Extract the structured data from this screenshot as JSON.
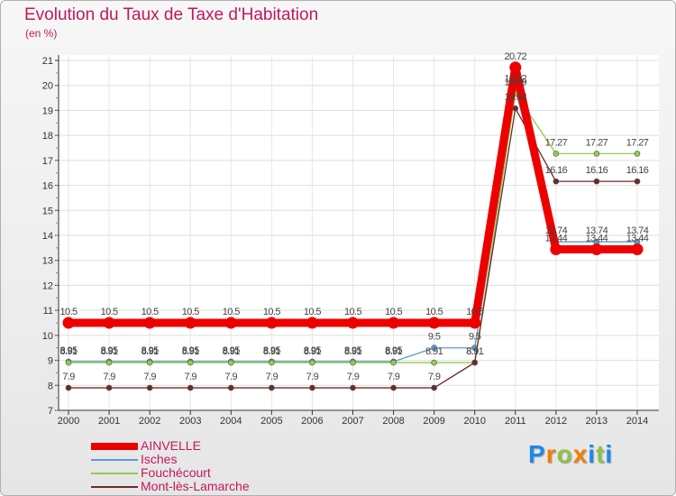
{
  "title": "Evolution du Taux de Taxe d'Habitation",
  "unit_label": "(en %)",
  "brand": {
    "letters": [
      "P",
      "r",
      "o",
      "x",
      "i",
      "t",
      "i"
    ],
    "colors": [
      "#1e88e5",
      "#f57c00",
      "#8bc34a",
      "#f57c00",
      "#1e88e5",
      "#8bc34a",
      "#1e88e5"
    ]
  },
  "chart_data": {
    "type": "line",
    "title": "Evolution du Taux de Taxe d'Habitation",
    "ylabel": "(en %)",
    "xlabel": "",
    "x": [
      "2000",
      "2001",
      "2002",
      "2003",
      "2004",
      "2005",
      "2006",
      "2007",
      "2008",
      "2009",
      "2010",
      "2011",
      "2012",
      "2013",
      "2014"
    ],
    "ylim": [
      7,
      21
    ],
    "yticks": [
      7,
      8,
      9,
      10,
      11,
      12,
      13,
      14,
      15,
      16,
      17,
      18,
      19,
      20,
      21
    ],
    "grid": true,
    "legend_position": "bottom-left",
    "series": [
      {
        "name": "Isches",
        "color": "#5b9bd5",
        "values": [
          8.95,
          8.95,
          8.95,
          8.95,
          8.95,
          8.95,
          8.95,
          8.95,
          8.95,
          9.5,
          9.5,
          19.82,
          13.74,
          13.74,
          13.74
        ],
        "labels": [
          "8.95",
          "8.95",
          "8.95",
          "8.95",
          "8.95",
          "8.95",
          "8.95",
          "8.95",
          "8.95",
          "9.5",
          "9.5",
          "19.82",
          "13.74",
          "13.74",
          "13.74"
        ]
      },
      {
        "name": "Fouchécourt",
        "color": "#8fce4a",
        "values": [
          8.91,
          8.91,
          8.91,
          8.91,
          8.91,
          8.91,
          8.91,
          8.91,
          8.91,
          8.91,
          8.91,
          19.69,
          17.27,
          17.27,
          17.27
        ],
        "labels": [
          "8.91",
          "8.91",
          "8.91",
          "8.91",
          "8.91",
          "8.91",
          "8.91",
          "8.91",
          "8.91",
          "8.91",
          "8.91",
          "19.69",
          "17.27",
          "17.27",
          "17.27"
        ]
      },
      {
        "name": "Mont-lès-Lamarche",
        "color": "#6b2a2a",
        "values": [
          7.9,
          7.9,
          7.9,
          7.9,
          7.9,
          7.9,
          7.9,
          7.9,
          7.9,
          7.9,
          8.91,
          19.08,
          16.16,
          16.16,
          16.16
        ],
        "labels": [
          "7.9",
          "7.9",
          "7.9",
          "7.9",
          "7.9",
          "7.9",
          "7.9",
          "7.9",
          "7.9",
          "7.9",
          "8.91",
          "19.08",
          "16.16",
          "16.16",
          "16.16"
        ]
      },
      {
        "name": "AINVELLE",
        "color": "#ee0000",
        "values": [
          10.5,
          10.5,
          10.5,
          10.5,
          10.5,
          10.5,
          10.5,
          10.5,
          10.5,
          10.5,
          10.5,
          20.72,
          13.44,
          13.44,
          13.44
        ],
        "labels": [
          "10.5",
          "10.5",
          "10.5",
          "10.5",
          "10.5",
          "10.5",
          "10.5",
          "10.5",
          "10.5",
          "10.5",
          "10.5",
          "20.72",
          "13.44",
          "13.44",
          "13.44"
        ]
      }
    ],
    "legend": [
      "AINVELLE",
      "Isches",
      "Fouchécourt",
      "Mont-lès-Lamarche"
    ]
  }
}
